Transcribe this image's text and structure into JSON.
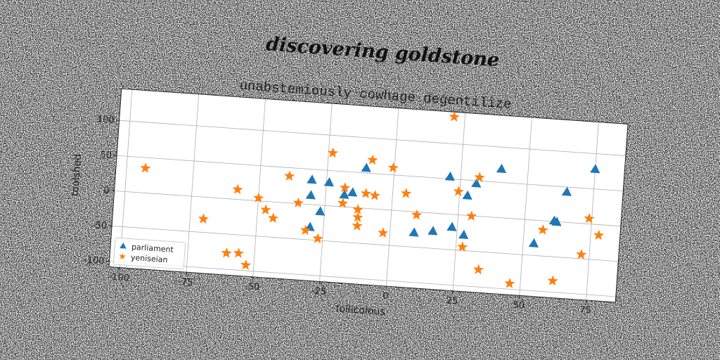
{
  "chart_data": {
    "type": "scatter",
    "suptitle": "discovering goldstone",
    "title": "unabstemiously cowhage degentilize",
    "xlabel": "follicolous",
    "ylabel": "toolshed",
    "xlim": [
      -104,
      86
    ],
    "ylim": [
      -108,
      145
    ],
    "xticks": [
      -100,
      -75,
      -50,
      -25,
      0,
      25,
      50,
      75
    ],
    "yticks": [
      -100,
      -50,
      0,
      50,
      100
    ],
    "grid": true,
    "legend": "lower left",
    "series": [
      {
        "name": "parliament",
        "color": "#1f77b4",
        "marker": "triangle",
        "x": [
          -30.5,
          -24,
          -30.5,
          -30,
          -26.6,
          -18,
          -15,
          -10.5,
          9,
          16,
          21,
          23,
          27.6,
          28,
          31,
          40,
          54,
          61,
          62,
          65,
          75
        ],
        "values": [
          35,
          33,
          13,
          -32,
          -9,
          17,
          21,
          57,
          -29.5,
          -25.6,
          53,
          -18,
          -28,
          28,
          46,
          69,
          -33,
          1,
          -0.5,
          43,
          78
        ]
      },
      {
        "name": "yeniseian",
        "color": "#ff7f0e",
        "marker": "star",
        "x": [
          -93,
          -70,
          -60.5,
          -56,
          -58,
          -53,
          -50,
          -47,
          -44,
          -39,
          -35,
          -31.6,
          -26.8,
          -23.4,
          -18,
          -18.4,
          -12.6,
          -12.4,
          -12.4,
          -10,
          -8.4,
          -6.6,
          -2.6,
          -0.5,
          5,
          9.5,
          21,
          24.5,
          27.4,
          30,
          32,
          34,
          46,
          57,
          62,
          72,
          74,
          78
        ],
        "values": [
          35,
          -31,
          -77,
          -76,
          14,
          -92,
          4,
          -12,
          -23,
          38,
          1,
          -37,
          -47.5,
          75,
          27,
          5,
          -2.5,
          -13.5,
          -25.5,
          21,
          69,
          19,
          -33,
          60,
          25,
          -4.3,
          138,
          33,
          -45,
          -0.5,
          55,
          -75.5,
          -92,
          -13,
          -84,
          -44,
          7.6,
          -15
        ]
      }
    ]
  }
}
